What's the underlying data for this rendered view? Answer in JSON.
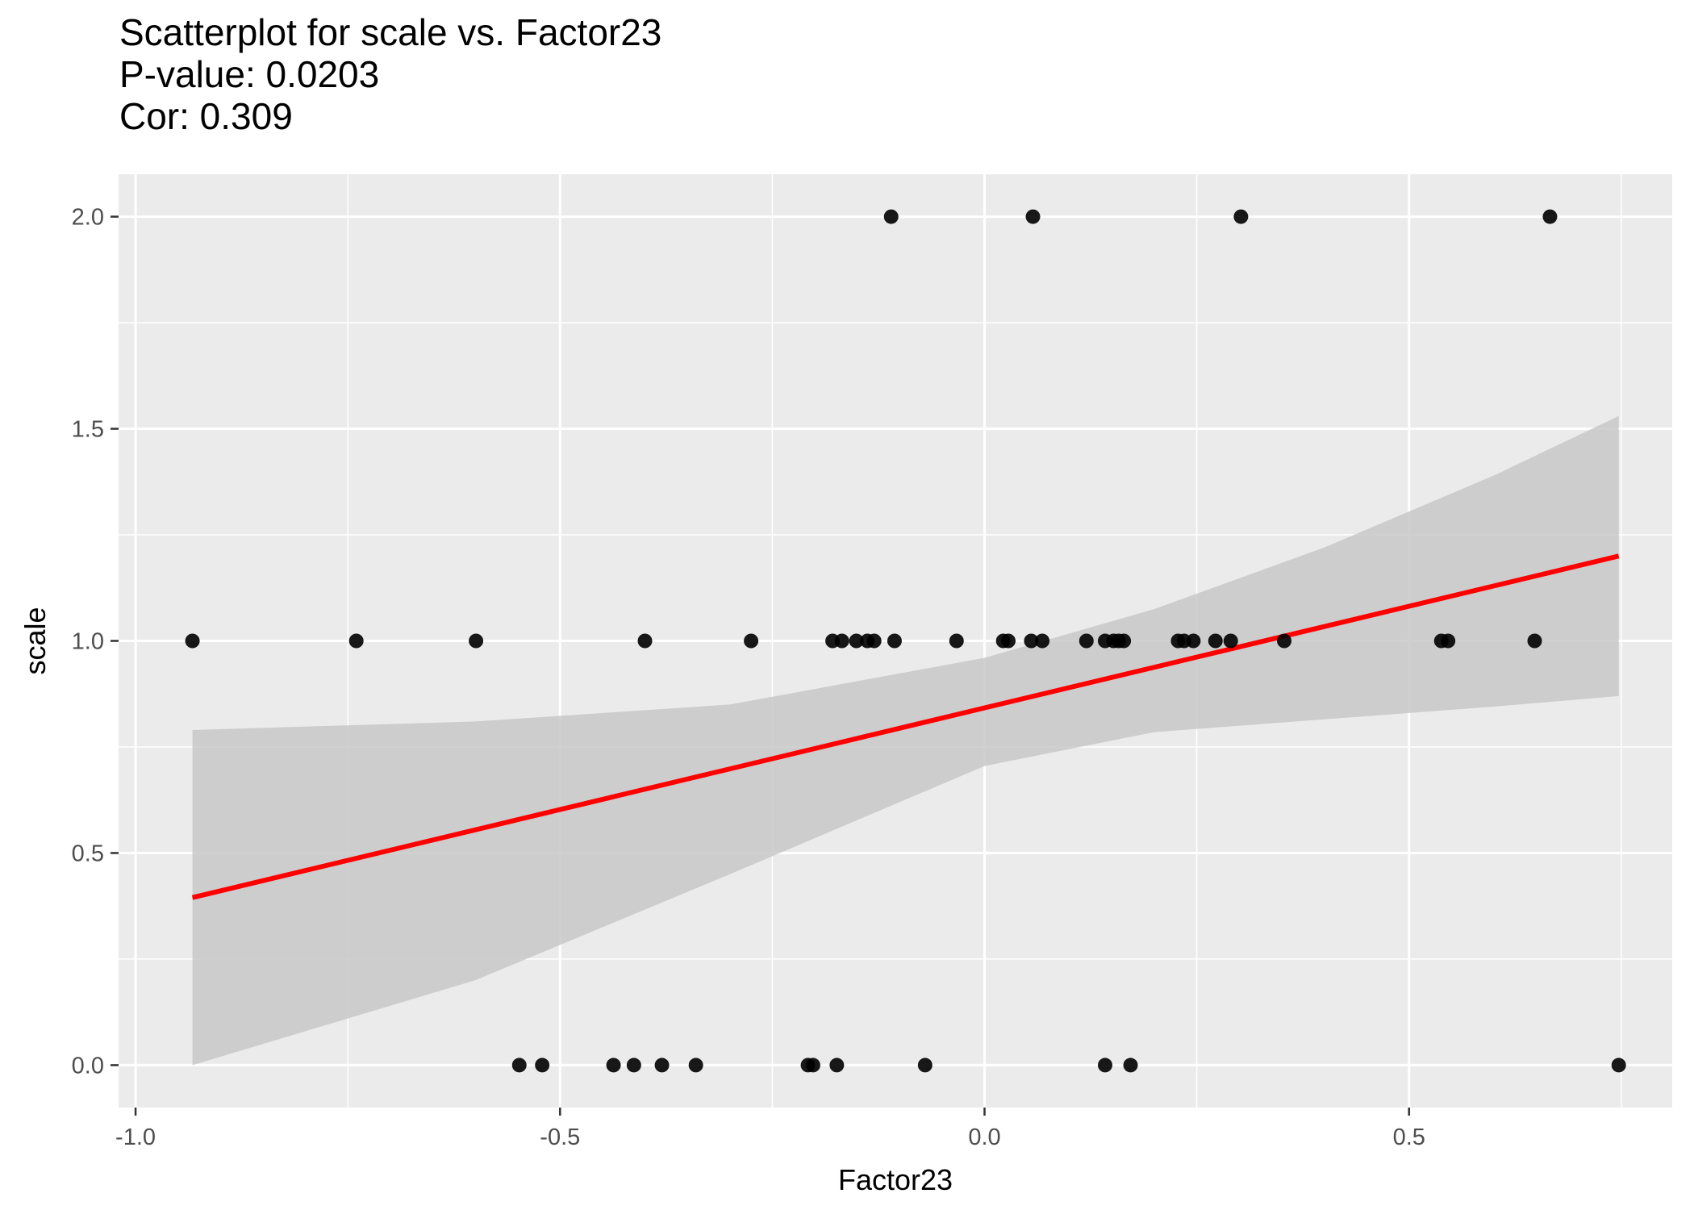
{
  "chart_data": {
    "type": "scatter",
    "title": "Scatterplot for scale vs. Factor23",
    "subtitle_lines": [
      "P-value: 0.0203",
      "Cor: 0.309"
    ],
    "xlabel": "Factor23",
    "ylabel": "scale",
    "xlim": [
      -1.02,
      0.81
    ],
    "ylim": [
      -0.1,
      2.1
    ],
    "x_ticks": [
      -1.0,
      -0.5,
      0.0,
      0.5
    ],
    "x_tick_labels": [
      "-1.0",
      "-0.5",
      "0.0",
      "0.5"
    ],
    "y_ticks": [
      0.0,
      0.5,
      1.0,
      1.5,
      2.0
    ],
    "y_tick_labels": [
      "0.0",
      "0.5",
      "1.0",
      "1.5",
      "2.0"
    ],
    "grid": true,
    "colors": {
      "panel": "#ebebeb",
      "grid": "#ffffff",
      "point": "#000000",
      "fit_line": "#ff0000",
      "ci_band": "#c8c8c8"
    },
    "points": [
      {
        "x": -0.11,
        "y": 2
      },
      {
        "x": 0.057,
        "y": 2
      },
      {
        "x": 0.302,
        "y": 2
      },
      {
        "x": 0.666,
        "y": 2
      },
      {
        "x": -0.933,
        "y": 1
      },
      {
        "x": -0.74,
        "y": 1
      },
      {
        "x": -0.599,
        "y": 1
      },
      {
        "x": -0.4,
        "y": 1
      },
      {
        "x": -0.275,
        "y": 1
      },
      {
        "x": -0.179,
        "y": 1
      },
      {
        "x": -0.168,
        "y": 1
      },
      {
        "x": -0.151,
        "y": 1
      },
      {
        "x": -0.138,
        "y": 1
      },
      {
        "x": -0.13,
        "y": 1
      },
      {
        "x": -0.106,
        "y": 1
      },
      {
        "x": -0.033,
        "y": 1
      },
      {
        "x": 0.022,
        "y": 1
      },
      {
        "x": 0.028,
        "y": 1
      },
      {
        "x": 0.055,
        "y": 1
      },
      {
        "x": 0.068,
        "y": 1
      },
      {
        "x": 0.12,
        "y": 1
      },
      {
        "x": 0.142,
        "y": 1
      },
      {
        "x": 0.152,
        "y": 1
      },
      {
        "x": 0.158,
        "y": 1
      },
      {
        "x": 0.164,
        "y": 1
      },
      {
        "x": 0.228,
        "y": 1
      },
      {
        "x": 0.235,
        "y": 1
      },
      {
        "x": 0.246,
        "y": 1
      },
      {
        "x": 0.272,
        "y": 1
      },
      {
        "x": 0.29,
        "y": 1
      },
      {
        "x": 0.353,
        "y": 1
      },
      {
        "x": 0.538,
        "y": 1
      },
      {
        "x": 0.546,
        "y": 1
      },
      {
        "x": 0.648,
        "y": 1
      },
      {
        "x": -0.548,
        "y": 0
      },
      {
        "x": -0.521,
        "y": 0
      },
      {
        "x": -0.437,
        "y": 0
      },
      {
        "x": -0.413,
        "y": 0
      },
      {
        "x": -0.38,
        "y": 0
      },
      {
        "x": -0.34,
        "y": 0
      },
      {
        "x": -0.208,
        "y": 0
      },
      {
        "x": -0.202,
        "y": 0
      },
      {
        "x": -0.174,
        "y": 0
      },
      {
        "x": -0.07,
        "y": 0
      },
      {
        "x": 0.142,
        "y": 0
      },
      {
        "x": 0.172,
        "y": 0
      },
      {
        "x": 0.747,
        "y": 0
      }
    ],
    "fit": {
      "x": [
        -0.933,
        0.747
      ],
      "y": [
        0.395,
        1.2
      ]
    },
    "ci_band": {
      "x": [
        -0.933,
        -0.6,
        -0.3,
        0.0,
        0.2,
        0.4,
        0.6,
        0.747
      ],
      "lower": [
        0.0,
        0.2,
        0.45,
        0.705,
        0.785,
        0.815,
        0.845,
        0.87
      ],
      "upper": [
        0.79,
        0.81,
        0.85,
        0.96,
        1.075,
        1.22,
        1.39,
        1.53
      ]
    }
  }
}
